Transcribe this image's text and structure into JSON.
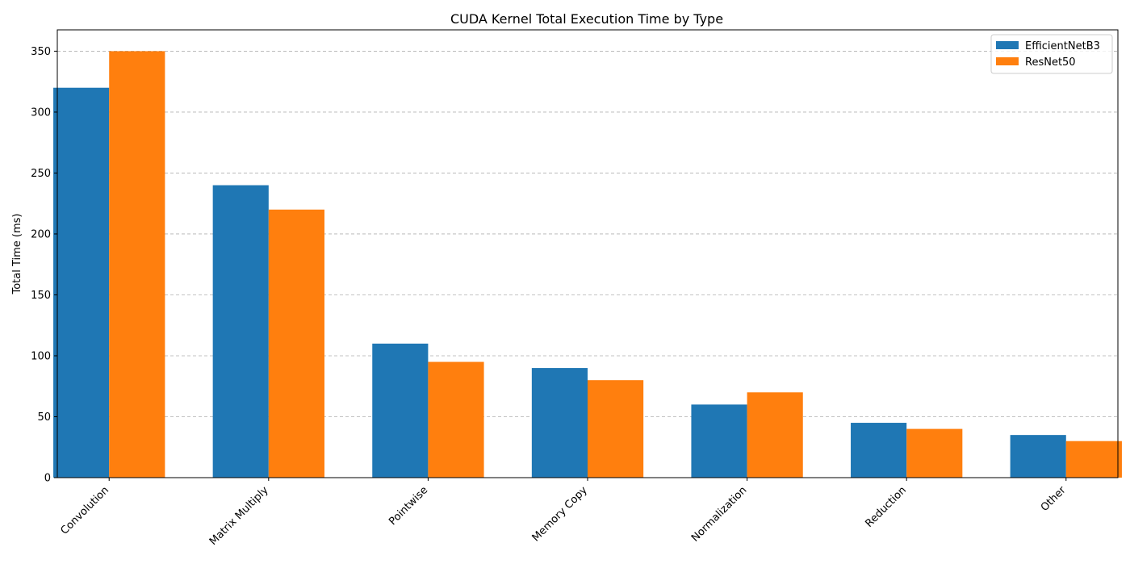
{
  "chart_data": {
    "type": "bar",
    "title": "CUDA Kernel Total Execution Time by Type",
    "xlabel": "",
    "ylabel": "Total Time (ms)",
    "categories": [
      "Convolution",
      "Matrix Multiply",
      "Pointwise",
      "Memory Copy",
      "Normalization",
      "Reduction",
      "Other"
    ],
    "series": [
      {
        "name": "EfficientNetB3",
        "color": "#1f77b4",
        "values": [
          320,
          240,
          110,
          90,
          60,
          45,
          35
        ]
      },
      {
        "name": "ResNet50",
        "color": "#ff7f0e",
        "values": [
          350,
          220,
          95,
          80,
          70,
          40,
          30
        ]
      }
    ],
    "ylim": [
      0,
      367.5
    ],
    "yticks": [
      0,
      50,
      100,
      150,
      200,
      250,
      300,
      350
    ],
    "grid": "y-dashed",
    "legend_position": "top-right",
    "xtick_rotation": 45
  }
}
